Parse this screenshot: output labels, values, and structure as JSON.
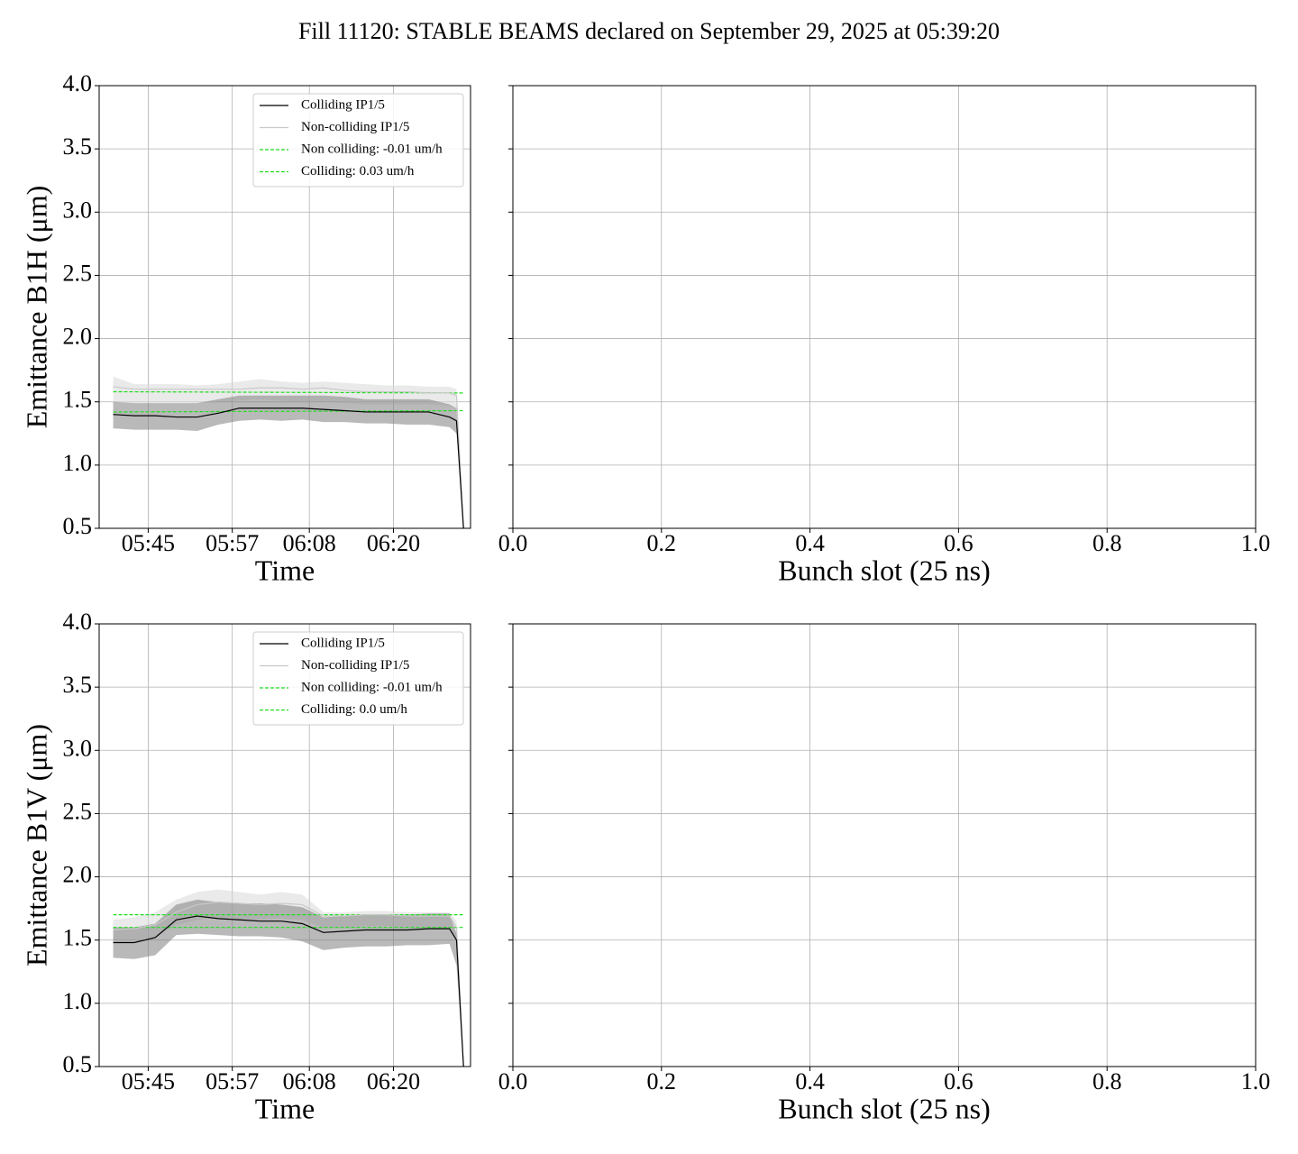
{
  "title": "Fill 11120: STABLE BEAMS declared on September 29, 2025 at 05:39:20",
  "chart_data": [
    {
      "type": "line",
      "xlabel": "Time",
      "ylabel": "Emittance B1H (μm)",
      "x": [
        "05:40",
        "05:43",
        "05:46",
        "05:49",
        "05:52",
        "05:55",
        "05:58",
        "06:01",
        "06:04",
        "06:07",
        "06:10",
        "06:13",
        "06:16",
        "06:19",
        "06:22",
        "06:25",
        "06:28",
        "06:29",
        "06:30"
      ],
      "xlim": [
        "05:38",
        "06:31"
      ],
      "xticks": [
        "05:45",
        "05:57",
        "06:08",
        "06:20"
      ],
      "ylim": [
        0.5,
        4.0
      ],
      "yticks": [
        0.5,
        {
          "value": 1.0,
          "label": "1.0"
        },
        1.5,
        {
          "value": 2.0,
          "label": "2.0"
        },
        2.5,
        {
          "value": 3.0,
          "label": "3.0"
        },
        3.5,
        {
          "value": 4.0,
          "label": "4.0"
        }
      ],
      "grid": true,
      "legend": "upper right",
      "series": [
        {
          "name": "Colliding IP1/5",
          "color": "#000000",
          "band_color": "#808080",
          "values": [
            1.4,
            1.39,
            1.39,
            1.38,
            1.38,
            1.41,
            1.45,
            1.45,
            1.45,
            1.45,
            1.44,
            1.43,
            1.42,
            1.42,
            1.42,
            1.42,
            1.38,
            1.35,
            0.5
          ],
          "band_lower": [
            1.29,
            1.28,
            1.28,
            1.28,
            1.27,
            1.32,
            1.35,
            1.36,
            1.35,
            1.36,
            1.34,
            1.34,
            1.33,
            1.33,
            1.32,
            1.32,
            1.3,
            1.25,
            0.5
          ],
          "band_upper": [
            1.5,
            1.49,
            1.49,
            1.49,
            1.49,
            1.52,
            1.55,
            1.55,
            1.55,
            1.55,
            1.55,
            1.54,
            1.52,
            1.52,
            1.52,
            1.52,
            1.48,
            1.45,
            0.5
          ]
        },
        {
          "name": "Non-colliding IP1/5",
          "color": "#c8c8c8",
          "band_color": "#d8d8d8",
          "values": [
            1.62,
            1.6,
            1.6,
            1.6,
            1.6,
            1.6,
            1.6,
            1.61,
            1.61,
            1.6,
            1.61,
            1.59,
            1.58,
            1.58,
            1.58,
            1.57,
            1.57,
            1.55,
            0.5
          ],
          "band_lower": [
            1.5,
            1.49,
            1.49,
            1.49,
            1.49,
            1.5,
            1.51,
            1.52,
            1.51,
            1.5,
            1.5,
            1.49,
            1.48,
            1.48,
            1.48,
            1.48,
            1.47,
            1.45,
            0.5
          ],
          "band_upper": [
            1.7,
            1.64,
            1.64,
            1.64,
            1.63,
            1.64,
            1.66,
            1.68,
            1.66,
            1.65,
            1.66,
            1.65,
            1.64,
            1.63,
            1.63,
            1.62,
            1.62,
            1.6,
            0.5
          ]
        },
        {
          "name": "Non colliding: -0.01 um/h",
          "color": "#22dd22",
          "linestyle": "dashed",
          "x": [
            "05:40",
            "06:30"
          ],
          "values": [
            1.58,
            1.57
          ]
        },
        {
          "name": "Colliding: 0.03 um/h",
          "color": "#22dd22",
          "linestyle": "dashed",
          "x": [
            "05:40",
            "06:30"
          ],
          "values": [
            1.42,
            1.43
          ]
        }
      ]
    },
    {
      "type": "line",
      "xlabel": "Bunch slot (25 ns)",
      "xlim": [
        0,
        1
      ],
      "xticks": [
        {
          "value": 0,
          "label": "0.0"
        },
        0.2,
        0.4,
        0.6,
        0.8,
        {
          "value": 1,
          "label": "1.0"
        }
      ],
      "ylim": [
        0.5,
        4.0
      ],
      "yticks": [
        0.5,
        1,
        1.5,
        2,
        2.5,
        3,
        3.5,
        4
      ],
      "ytick_labels": false,
      "grid": true,
      "series": []
    },
    {
      "type": "line",
      "xlabel": "Time",
      "ylabel": "Emittance B1V (μm)",
      "x": [
        "05:40",
        "05:43",
        "05:46",
        "05:49",
        "05:52",
        "05:55",
        "05:58",
        "06:01",
        "06:04",
        "06:07",
        "06:10",
        "06:13",
        "06:16",
        "06:19",
        "06:22",
        "06:25",
        "06:28",
        "06:29",
        "06:30"
      ],
      "xlim": [
        "05:38",
        "06:31"
      ],
      "xticks": [
        "05:45",
        "05:57",
        "06:08",
        "06:20"
      ],
      "ylim": [
        0.5,
        4.0
      ],
      "yticks": [
        0.5,
        {
          "value": 1.0,
          "label": "1.0"
        },
        1.5,
        {
          "value": 2.0,
          "label": "2.0"
        },
        2.5,
        {
          "value": 3.0,
          "label": "3.0"
        },
        3.5,
        {
          "value": 4.0,
          "label": "4.0"
        }
      ],
      "grid": true,
      "legend": "upper right",
      "series": [
        {
          "name": "Colliding IP1/5",
          "color": "#000000",
          "band_color": "#808080",
          "values": [
            1.48,
            1.48,
            1.52,
            1.66,
            1.69,
            1.67,
            1.66,
            1.65,
            1.65,
            1.63,
            1.56,
            1.57,
            1.58,
            1.58,
            1.58,
            1.59,
            1.59,
            1.5,
            0.5
          ],
          "band_lower": [
            1.36,
            1.35,
            1.38,
            1.54,
            1.55,
            1.54,
            1.53,
            1.53,
            1.52,
            1.49,
            1.42,
            1.44,
            1.45,
            1.45,
            1.46,
            1.46,
            1.47,
            1.3,
            0.5
          ],
          "band_upper": [
            1.6,
            1.6,
            1.63,
            1.78,
            1.82,
            1.8,
            1.79,
            1.79,
            1.78,
            1.76,
            1.68,
            1.69,
            1.7,
            1.7,
            1.7,
            1.71,
            1.71,
            1.55,
            0.5
          ]
        },
        {
          "name": "Non-colliding IP1/5",
          "color": "#c8c8c8",
          "band_color": "#d8d8d8",
          "values": [
            1.58,
            1.59,
            1.62,
            1.72,
            1.78,
            1.8,
            1.79,
            1.78,
            1.79,
            1.78,
            1.69,
            1.69,
            1.7,
            1.7,
            1.69,
            1.69,
            1.69,
            1.6,
            0.5
          ],
          "band_lower": [
            1.5,
            1.5,
            1.52,
            1.62,
            1.66,
            1.68,
            1.67,
            1.66,
            1.67,
            1.66,
            1.6,
            1.6,
            1.61,
            1.61,
            1.6,
            1.6,
            1.6,
            1.5,
            0.5
          ],
          "band_upper": [
            1.66,
            1.68,
            1.72,
            1.82,
            1.88,
            1.9,
            1.88,
            1.86,
            1.88,
            1.86,
            1.72,
            1.72,
            1.73,
            1.73,
            1.72,
            1.72,
            1.72,
            1.65,
            0.5
          ]
        },
        {
          "name": "Non colliding: -0.01 um/h",
          "color": "#22dd22",
          "linestyle": "dashed",
          "x": [
            "05:40",
            "06:30"
          ],
          "values": [
            1.7,
            1.7
          ]
        },
        {
          "name": "Colliding: 0.0 um/h",
          "color": "#22dd22",
          "linestyle": "dashed",
          "x": [
            "05:40",
            "06:30"
          ],
          "values": [
            1.6,
            1.6
          ]
        }
      ]
    },
    {
      "type": "line",
      "xlabel": "Bunch slot (25 ns)",
      "xlim": [
        0,
        1
      ],
      "xticks": [
        {
          "value": 0,
          "label": "0.0"
        },
        0.2,
        0.4,
        0.6,
        0.8,
        {
          "value": 1,
          "label": "1.0"
        }
      ],
      "ylim": [
        0.5,
        4.0
      ],
      "yticks": [
        0.5,
        1,
        1.5,
        2,
        2.5,
        3,
        3.5,
        4
      ],
      "ytick_labels": false,
      "grid": true,
      "series": []
    }
  ]
}
